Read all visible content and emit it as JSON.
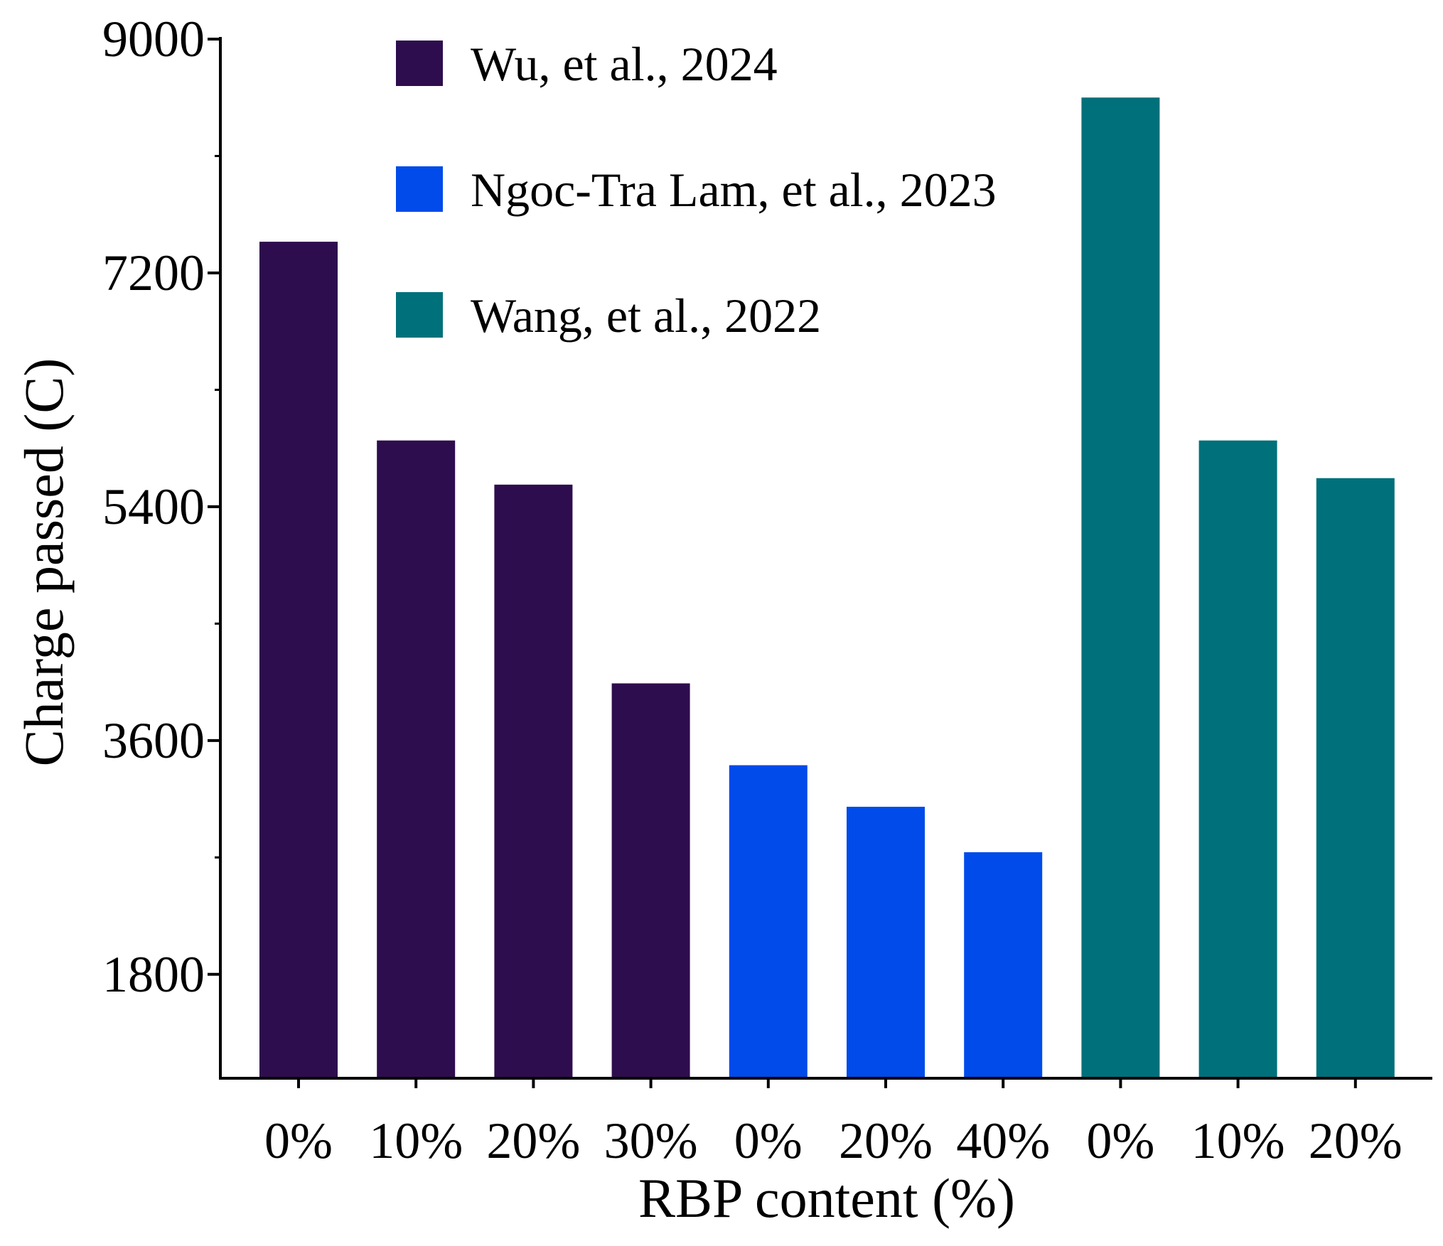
{
  "chart_data": {
    "type": "bar",
    "title": "",
    "xlabel": "RBP content (%)",
    "ylabel": "Charge passed (C)",
    "ylim": [
      1000,
      9000
    ],
    "yticks": [
      1800,
      3600,
      5400,
      7200,
      9000
    ],
    "yticks_minor": [
      2700,
      4500,
      6300,
      8100
    ],
    "legend_position": "top-left",
    "series": [
      {
        "name": "Wu, et al., 2024",
        "color": "#2e0d4e",
        "categories": [
          "0%",
          "10%",
          "20%",
          "30%"
        ],
        "values": [
          7440,
          5910,
          5570,
          4040
        ]
      },
      {
        "name": "Ngoc-Tra Lam, et al., 2023",
        "color": "#004bea",
        "categories": [
          "0%",
          "20%",
          "40%"
        ],
        "values": [
          3410,
          3090,
          2740
        ]
      },
      {
        "name": "Wang, et al., 2022",
        "color": "#00707a",
        "categories": [
          "0%",
          "10%",
          "20%"
        ],
        "values": [
          8550,
          5910,
          5620
        ]
      }
    ]
  }
}
